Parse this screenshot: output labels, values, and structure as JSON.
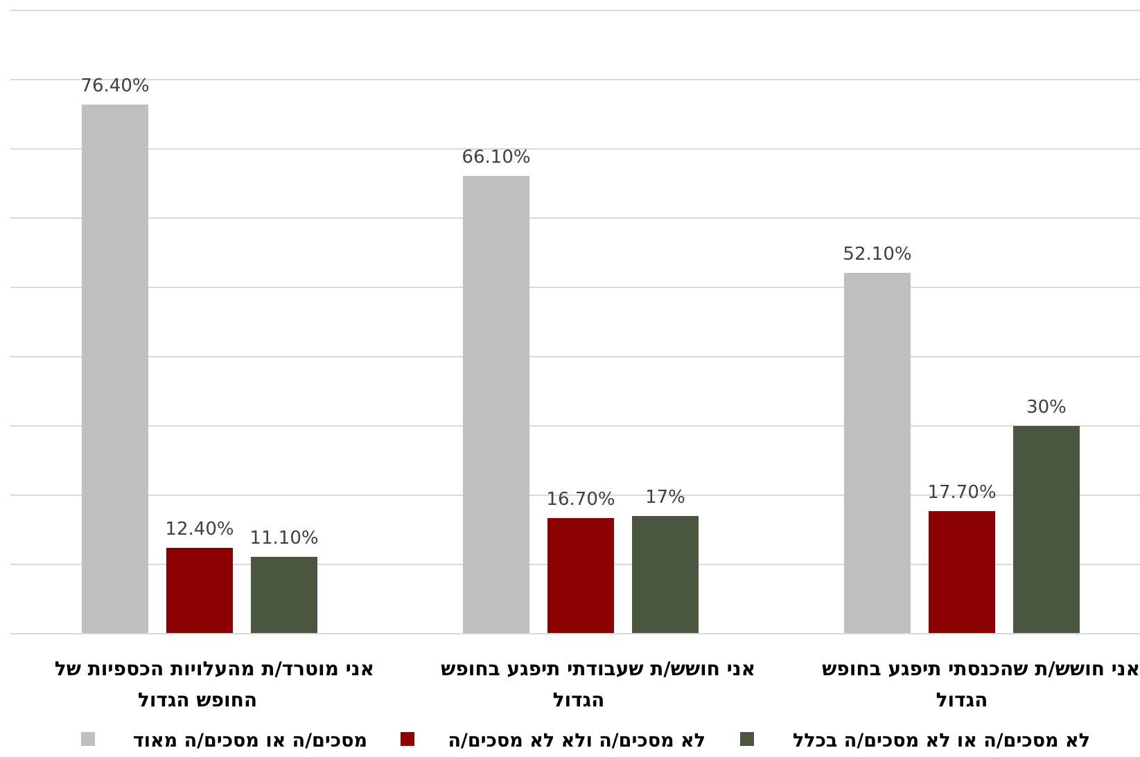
{
  "chart_data": {
    "type": "bar",
    "categories": [
      [
        "אני מוטרד/ת מהעלויות הכספיות של",
        "החופש הגדול"
      ],
      [
        "אני חושש/ת שעבודתי תיפגע בחופש",
        "הגדול"
      ],
      [
        "אני חושש/ת שהכנסתי תיפגע בחופש",
        "הגדול"
      ]
    ],
    "series": [
      {
        "name": "מסכים/ה או מסכים/ה מאוד",
        "color": "#bfbfbf",
        "values": [
          76.4,
          66.1,
          52.1
        ],
        "labels": [
          "76.40%",
          "66.10%",
          "52.10%"
        ]
      },
      {
        "name": "לא מסכים/ה ולא לא מסכים/ה",
        "color": "#8b0000",
        "values": [
          12.4,
          16.7,
          17.7
        ],
        "labels": [
          "12.40%",
          "16.70%",
          "17.70%"
        ]
      },
      {
        "name": "לא מסכים/ה או לא מסכים/ה בכלל",
        "color": "#4b5640",
        "values": [
          11.1,
          17,
          30
        ],
        "labels": [
          "11.10%",
          "17%",
          "30%"
        ]
      }
    ],
    "ylim": [
      0,
      90
    ],
    "grid": true,
    "legend_position": "bottom"
  }
}
